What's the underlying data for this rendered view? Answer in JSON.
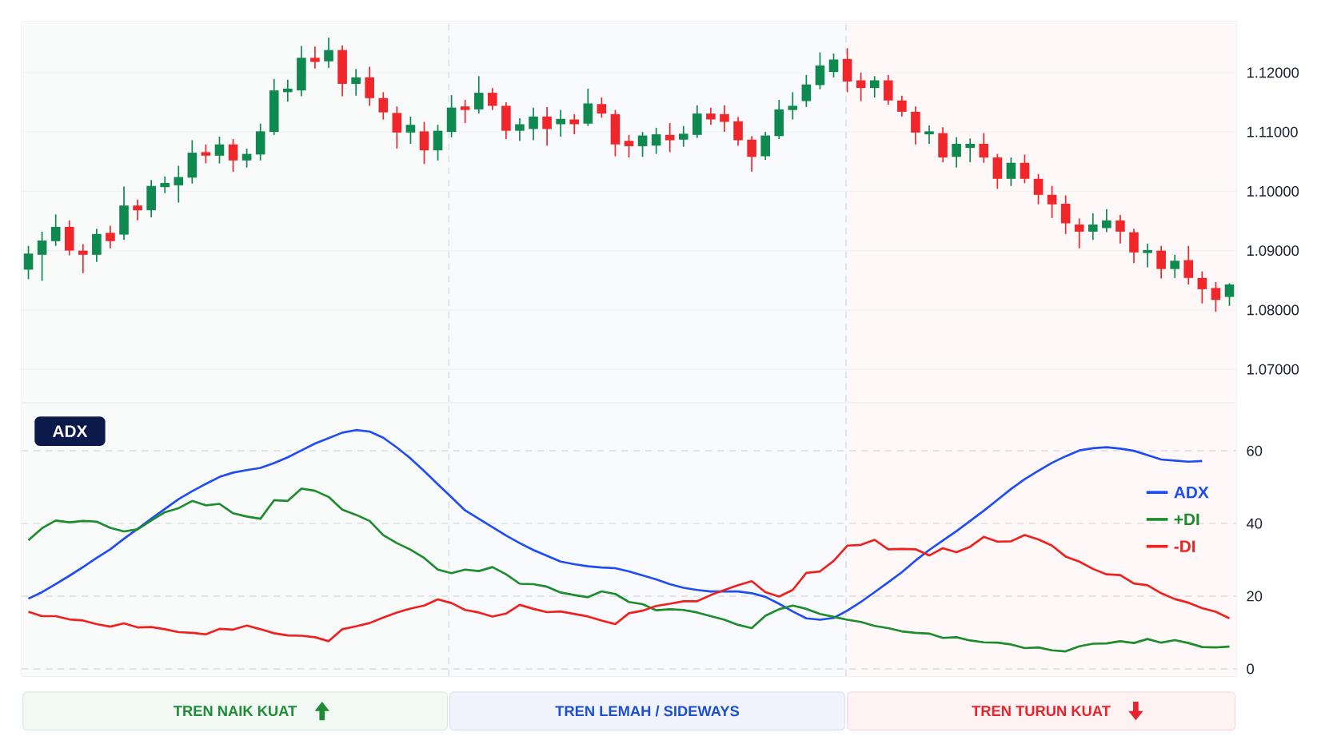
{
  "chart_data": [
    {
      "type": "candlestick",
      "categories": [
        null,
        null,
        null,
        null,
        null,
        null,
        null,
        null,
        null,
        null,
        null,
        null,
        null,
        null,
        null,
        null,
        null,
        null,
        null,
        null,
        null,
        null,
        null,
        null,
        null,
        null,
        null,
        null,
        null,
        null,
        null,
        null,
        null,
        null,
        null,
        null,
        null,
        null,
        null,
        null,
        null,
        null,
        null,
        null,
        null,
        null,
        null,
        null,
        null,
        null,
        null,
        null,
        null,
        null,
        null,
        null,
        null,
        null,
        null,
        null,
        null,
        null,
        null,
        null,
        null,
        null,
        null,
        null,
        null,
        null,
        null,
        null,
        null,
        null,
        null,
        null,
        null,
        null,
        null,
        null,
        null,
        null,
        null,
        null,
        null,
        null,
        null,
        null,
        null
      ],
      "ohlc": [
        [
          1.0868,
          1.0908,
          1.0852,
          1.0895
        ],
        [
          1.0893,
          1.0932,
          1.0849,
          1.0917
        ],
        [
          1.0916,
          1.0961,
          1.0908,
          1.094
        ],
        [
          1.094,
          1.0951,
          1.0892,
          1.09
        ],
        [
          1.09,
          1.0911,
          1.0862,
          1.0893
        ],
        [
          1.0893,
          1.0937,
          1.0881,
          1.0928
        ],
        [
          1.093,
          1.0942,
          1.0904,
          1.0916
        ],
        [
          1.0927,
          1.1008,
          1.0918,
          1.0976
        ],
        [
          1.0976,
          1.0986,
          1.0951,
          1.0968
        ],
        [
          1.0968,
          1.1019,
          1.0956,
          1.1009
        ],
        [
          1.1007,
          1.1025,
          1.0997,
          1.1014
        ],
        [
          1.101,
          1.1043,
          1.0981,
          1.1024
        ],
        [
          1.1023,
          1.1086,
          1.1013,
          1.1065
        ],
        [
          1.1066,
          1.1079,
          1.1047,
          1.106
        ],
        [
          1.106,
          1.1092,
          1.1047,
          1.1079
        ],
        [
          1.1079,
          1.1088,
          1.1033,
          1.1052
        ],
        [
          1.1052,
          1.1072,
          1.104,
          1.1063
        ],
        [
          1.1062,
          1.1114,
          1.1052,
          1.1101
        ],
        [
          1.11,
          1.1189,
          1.1095,
          1.117
        ],
        [
          1.1167,
          1.1188,
          1.1151,
          1.1173
        ],
        [
          1.117,
          1.1245,
          1.116,
          1.1225
        ],
        [
          1.1225,
          1.1244,
          1.1207,
          1.1218
        ],
        [
          1.1219,
          1.1259,
          1.1208,
          1.1238
        ],
        [
          1.1238,
          1.1246,
          1.116,
          1.1181
        ],
        [
          1.1181,
          1.1206,
          1.1161,
          1.1192
        ],
        [
          1.1192,
          1.121,
          1.1144,
          1.1157
        ],
        [
          1.1157,
          1.1167,
          1.1121,
          1.1133
        ],
        [
          1.1132,
          1.1143,
          1.1072,
          1.1099
        ],
        [
          1.1099,
          1.1126,
          1.108,
          1.1112
        ],
        [
          1.1101,
          1.1117,
          1.1046,
          1.1069
        ],
        [
          1.1069,
          1.1112,
          1.1052,
          1.1102
        ],
        [
          1.11,
          1.1162,
          1.1091,
          1.1141
        ],
        [
          1.1143,
          1.1154,
          1.1115,
          1.1137
        ],
        [
          1.1138,
          1.1194,
          1.1131,
          1.1166
        ],
        [
          1.1166,
          1.1174,
          1.1137,
          1.1144
        ],
        [
          1.1144,
          1.115,
          1.1088,
          1.1102
        ],
        [
          1.1102,
          1.1123,
          1.1085,
          1.1113
        ],
        [
          1.1105,
          1.1141,
          1.1086,
          1.1126
        ],
        [
          1.1126,
          1.1142,
          1.1077,
          1.1105
        ],
        [
          1.1113,
          1.1137,
          1.1092,
          1.1122
        ],
        [
          1.1121,
          1.113,
          1.1096,
          1.1113
        ],
        [
          1.1114,
          1.1173,
          1.111,
          1.1148
        ],
        [
          1.1147,
          1.1158,
          1.1124,
          1.1131
        ],
        [
          1.113,
          1.1137,
          1.1059,
          1.1079
        ],
        [
          1.1085,
          1.1095,
          1.1057,
          1.1076
        ],
        [
          1.1076,
          1.11,
          1.1058,
          1.1094
        ],
        [
          1.1077,
          1.1107,
          1.1063,
          1.1096
        ],
        [
          1.1095,
          1.1115,
          1.1066,
          1.1086
        ],
        [
          1.1087,
          1.111,
          1.1075,
          1.1097
        ],
        [
          1.1095,
          1.1145,
          1.109,
          1.1131
        ],
        [
          1.1131,
          1.1141,
          1.1112,
          1.1121
        ],
        [
          1.113,
          1.1145,
          1.11,
          1.1117
        ],
        [
          1.1118,
          1.1125,
          1.1077,
          1.1086
        ],
        [
          1.1087,
          1.1093,
          1.1033,
          1.1058
        ],
        [
          1.1059,
          1.11,
          1.1053,
          1.1094
        ],
        [
          1.1093,
          1.1154,
          1.1088,
          1.1138
        ],
        [
          1.1137,
          1.1167,
          1.1121,
          1.1144
        ],
        [
          1.1152,
          1.1196,
          1.1142,
          1.118
        ],
        [
          1.1179,
          1.1234,
          1.1172,
          1.1212
        ],
        [
          1.1201,
          1.1232,
          1.1192,
          1.1222
        ],
        [
          1.1223,
          1.1241,
          1.1167,
          1.1185
        ],
        [
          1.1187,
          1.12,
          1.1152,
          1.1174
        ],
        [
          1.1174,
          1.1194,
          1.1158,
          1.1187
        ],
        [
          1.1187,
          1.1196,
          1.1146,
          1.1153
        ],
        [
          1.1153,
          1.1161,
          1.1126,
          1.1134
        ],
        [
          1.1134,
          1.1143,
          1.1079,
          1.1099
        ],
        [
          1.1096,
          1.1111,
          1.108,
          1.1101
        ],
        [
          1.1098,
          1.1108,
          1.1049,
          1.1057
        ],
        [
          1.1058,
          1.1091,
          1.104,
          1.108
        ],
        [
          1.1073,
          1.1089,
          1.1049,
          1.108
        ],
        [
          1.108,
          1.1098,
          1.1048,
          1.1057
        ],
        [
          1.1057,
          1.1063,
          1.1004,
          1.1021
        ],
        [
          1.1021,
          1.1057,
          1.1009,
          1.1048
        ],
        [
          1.1048,
          1.1062,
          1.1014,
          1.1021
        ],
        [
          1.1021,
          1.1029,
          1.0978,
          1.0994
        ],
        [
          1.0994,
          1.1009,
          1.0955,
          1.0978
        ],
        [
          1.0979,
          1.0993,
          1.0928,
          1.0946
        ],
        [
          1.0944,
          1.0954,
          1.0904,
          1.0932
        ],
        [
          1.0932,
          1.0963,
          1.0918,
          1.0944
        ],
        [
          1.0938,
          1.097,
          1.0931,
          1.0951
        ],
        [
          1.0951,
          1.096,
          1.0912,
          1.0932
        ],
        [
          1.0931,
          1.0937,
          1.0879,
          1.0897
        ],
        [
          1.0896,
          1.0912,
          1.0872,
          1.0901
        ],
        [
          1.09,
          1.0908,
          1.0853,
          1.0869
        ],
        [
          1.0869,
          1.0893,
          1.0854,
          1.0883
        ],
        [
          1.0884,
          1.0908,
          1.0843,
          1.0854
        ],
        [
          1.0854,
          1.0865,
          1.0811,
          1.0835
        ],
        [
          1.0837,
          1.0847,
          1.0797,
          1.0817
        ],
        [
          1.0822,
          1.0845,
          1.0807,
          1.0843
        ]
      ],
      "colors": [
        "#0e8a50",
        "#0e8a50",
        "#0e8a50",
        "#f0262b",
        "#f0262b",
        "#0e8a50",
        "#f0262b",
        "#0e8a50",
        "#f0262b",
        "#0e8a50",
        "#0e8a50",
        "#0e8a50",
        "#0e8a50",
        "#f0262b",
        "#0e8a50",
        "#f0262b",
        "#0e8a50",
        "#0e8a50",
        "#0e8a50",
        "#0e8a50",
        "#0e8a50",
        "#f0262b",
        "#0e8a50",
        "#f0262b",
        "#0e8a50",
        "#f0262b",
        "#f0262b",
        "#f0262b",
        "#0e8a50",
        "#f0262b",
        "#0e8a50",
        "#0e8a50",
        "#f0262b",
        "#0e8a50",
        "#f0262b",
        "#f0262b",
        "#0e8a50",
        "#0e8a50",
        "#f0262b",
        "#0e8a50",
        "#f0262b",
        "#0e8a50",
        "#f0262b",
        "#f0262b",
        "#f0262b",
        "#0e8a50",
        "#0e8a50",
        "#f0262b",
        "#0e8a50",
        "#0e8a50",
        "#f0262b",
        "#f0262b",
        "#f0262b",
        "#f0262b",
        "#0e8a50",
        "#0e8a50",
        "#0e8a50",
        "#0e8a50",
        "#0e8a50",
        "#0e8a50",
        "#f0262b",
        "#f0262b",
        "#0e8a50",
        "#f0262b",
        "#f0262b",
        "#f0262b",
        "#0e8a50",
        "#f0262b",
        "#0e8a50",
        "#0e8a50",
        "#f0262b",
        "#f0262b",
        "#0e8a50",
        "#f0262b",
        "#f0262b",
        "#f0262b",
        "#f0262b",
        "#f0262b",
        "#0e8a50",
        "#0e8a50",
        "#f0262b",
        "#f0262b",
        "#0e8a50",
        "#f0262b",
        "#0e8a50",
        "#f0262b",
        "#f0262b",
        "#f0262b",
        "#0e8a50"
      ],
      "ylim": [
        1.0645,
        1.1286
      ],
      "yticks": [
        {
          "value": 1.07,
          "label": "1.07000"
        },
        {
          "value": 1.08,
          "label": "1.08000"
        },
        {
          "value": 1.09,
          "label": "1.09000"
        },
        {
          "value": 1.1,
          "label": "1.10000"
        },
        {
          "value": 1.11,
          "label": "1.11000"
        },
        {
          "value": 1.12,
          "label": "1.12000"
        }
      ],
      "grid": "y",
      "tick_labels": "y"
    },
    {
      "type": "line",
      "title": "ADX",
      "categories": [
        null,
        null,
        null,
        null,
        null,
        null,
        null,
        null,
        null,
        null,
        null,
        null,
        null,
        null,
        null,
        null,
        null,
        null,
        null,
        null,
        null,
        null,
        null,
        null,
        null,
        null,
        null,
        null,
        null,
        null,
        null,
        null,
        null,
        null,
        null,
        null,
        null,
        null,
        null,
        null,
        null,
        null,
        null,
        null,
        null,
        null,
        null,
        null,
        null,
        null,
        null,
        null,
        null,
        null,
        null,
        null,
        null,
        null,
        null,
        null,
        null,
        null,
        null,
        null,
        null,
        null,
        null,
        null,
        null,
        null,
        null,
        null,
        null,
        null,
        null,
        null,
        null,
        null,
        null,
        null,
        null,
        null,
        null,
        null,
        null,
        null,
        null,
        null,
        null
      ],
      "ylim": [
        -2,
        73
      ],
      "yticks": [
        0,
        20,
        40,
        60
      ],
      "grid": "y",
      "tick_labels": "y",
      "legend": "right",
      "series": [
        {
          "name": "ADX",
          "color": "#1f4df5",
          "values": [
            19.3,
            21.1,
            23.3,
            25.6,
            28.0,
            30.5,
            32.9,
            35.8,
            38.5,
            41.3,
            44.0,
            46.7,
            48.9,
            50.9,
            52.8,
            54.0,
            54.7,
            55.3,
            56.6,
            58.2,
            60.1,
            62.0,
            63.5,
            65.0,
            65.7,
            65.3,
            63.6,
            60.9,
            57.9,
            54.4,
            50.8,
            47.2,
            43.6,
            41.3,
            39.0,
            36.7,
            34.6,
            32.7,
            31.1,
            29.5,
            28.8,
            28.2,
            27.9,
            27.7,
            26.8,
            25.7,
            24.6,
            23.3,
            22.3,
            21.7,
            21.3,
            21.3,
            21.3,
            20.8,
            19.8,
            17.9,
            15.8,
            13.9,
            13.5,
            14.0,
            16.0,
            18.4,
            21.1,
            23.8,
            26.6,
            29.8,
            32.7,
            35.3,
            37.9,
            40.7,
            43.5,
            46.5,
            49.5,
            52.2,
            54.5,
            56.7,
            58.5,
            60.1,
            60.7,
            61.0,
            60.6,
            60.0,
            58.8,
            57.6,
            57.3,
            57.0,
            57.2,
            null,
            null
          ]
        },
        {
          "name": "+DI",
          "color": "#1c8c2c",
          "values": [
            35.4,
            38.7,
            40.8,
            40.3,
            40.7,
            40.5,
            38.8,
            37.8,
            38.4,
            40.8,
            43.1,
            44.2,
            46.2,
            45.0,
            45.4,
            42.8,
            41.9,
            41.3,
            46.4,
            46.2,
            49.6,
            49.0,
            47.3,
            43.8,
            42.4,
            40.7,
            36.8,
            34.6,
            32.8,
            30.5,
            27.3,
            26.3,
            27.3,
            26.9,
            28.0,
            26.0,
            23.4,
            23.3,
            22.6,
            21.0,
            20.3,
            19.7,
            21.3,
            20.6,
            18.4,
            17.8,
            16.1,
            16.4,
            16.2,
            15.5,
            14.5,
            13.5,
            12.1,
            11.2,
            14.6,
            16.4,
            17.4,
            16.5,
            15.1,
            14.3,
            13.5,
            12.9,
            11.8,
            11.2,
            10.3,
            9.9,
            9.7,
            8.5,
            8.7,
            7.8,
            7.3,
            7.2,
            6.7,
            5.7,
            5.9,
            5.1,
            4.8,
            6.2,
            6.9,
            7.0,
            7.6,
            7.1,
            8.2,
            7.2,
            7.9,
            7.1,
            6.0,
            5.9,
            6.1
          ]
        },
        {
          "name": "-DI",
          "color": "#f0201e",
          "values": [
            15.7,
            14.5,
            14.5,
            13.6,
            13.3,
            12.3,
            11.6,
            12.5,
            11.4,
            11.5,
            10.9,
            10.1,
            9.9,
            9.5,
            11.0,
            10.8,
            11.9,
            10.9,
            9.8,
            9.2,
            9.1,
            8.7,
            7.6,
            10.9,
            11.7,
            12.6,
            14.1,
            15.5,
            16.6,
            17.4,
            19.1,
            18.1,
            16.2,
            15.5,
            14.4,
            15.2,
            17.6,
            16.5,
            15.6,
            15.8,
            15.1,
            14.4,
            13.3,
            12.3,
            15.3,
            16.0,
            17.3,
            17.9,
            18.6,
            18.6,
            20.3,
            21.7,
            23.0,
            24.1,
            21.1,
            19.9,
            21.7,
            26.4,
            26.8,
            29.7,
            33.9,
            34.1,
            35.5,
            32.9,
            33.0,
            32.9,
            31.2,
            33.2,
            32.1,
            33.6,
            36.3,
            35.0,
            35.1,
            36.8,
            35.6,
            33.9,
            30.9,
            29.5,
            27.5,
            26.0,
            25.8,
            23.5,
            23.0,
            20.8,
            19.2,
            18.2,
            16.7,
            15.7,
            13.9
          ]
        }
      ],
      "annotations": [
        "TREN NAIK KUAT",
        "TREN LEMAH / SIDEWAYS",
        "TREN TURUN KUAT"
      ]
    }
  ]
}
